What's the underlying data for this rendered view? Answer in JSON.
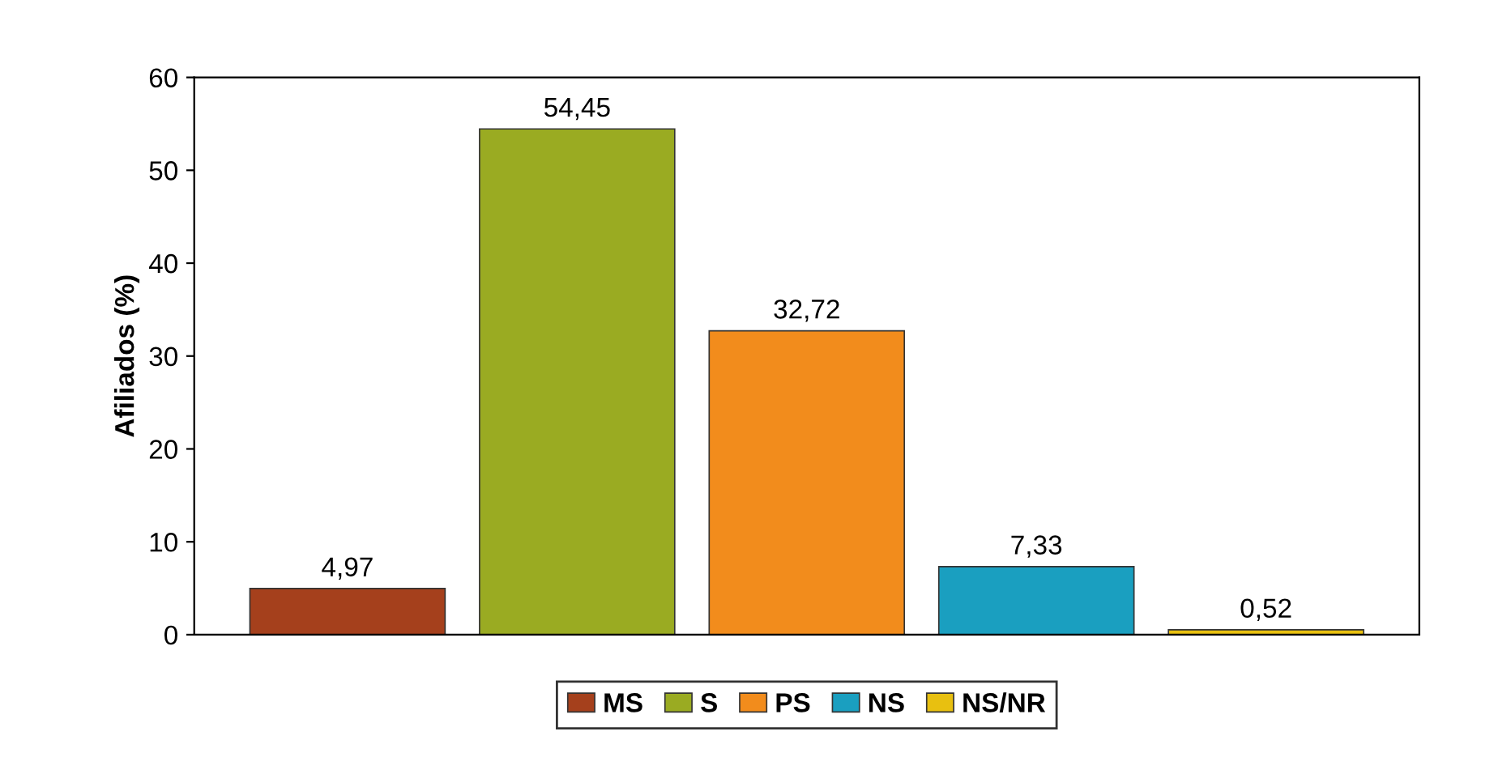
{
  "chart_data": {
    "type": "bar",
    "ylabel": "Afiliados (%)",
    "categories": [
      null
    ],
    "ylim": [
      0,
      60
    ],
    "yticks": [
      0,
      10,
      20,
      30,
      40,
      50,
      60
    ],
    "grid": false,
    "legend": "bottom",
    "series": [
      {
        "name": "MS",
        "color": "#a5401c",
        "values": [
          4.97
        ],
        "value_labels": [
          "4,97"
        ]
      },
      {
        "name": "S",
        "color": "#9aab22",
        "values": [
          54.45
        ],
        "value_labels": [
          "54,45"
        ]
      },
      {
        "name": "PS",
        "color": "#f28c1c",
        "values": [
          32.72
        ],
        "value_labels": [
          "32,72"
        ]
      },
      {
        "name": "NS",
        "color": "#1a9fc0",
        "values": [
          7.33
        ],
        "value_labels": [
          "7,33"
        ]
      },
      {
        "name": "NS/NR",
        "color": "#e8c010",
        "values": [
          0.52
        ],
        "value_labels": [
          "0,52"
        ]
      }
    ]
  }
}
